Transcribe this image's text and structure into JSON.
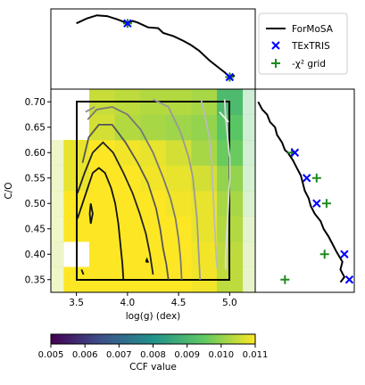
{
  "chart_data": {
    "type": "heatmap",
    "heatmap": {
      "x_centers": [
        3.25,
        3.5,
        3.75,
        4.0,
        4.25,
        4.5,
        4.75,
        5.0,
        5.25
      ],
      "y_centers": [
        0.3,
        0.35,
        0.4,
        0.45,
        0.5,
        0.55,
        0.6,
        0.65,
        0.7
      ],
      "values": [
        [
          0.011,
          0.011,
          0.011,
          0.011,
          0.011,
          0.011,
          0.0109,
          0.0104,
          0.0103
        ],
        [
          0.0105,
          0.011,
          0.011,
          0.011,
          0.011,
          0.011,
          0.0109,
          0.0104,
          0.0102
        ],
        [
          0.0104,
          null,
          0.011,
          0.011,
          0.011,
          0.011,
          0.0109,
          0.0104,
          0.0102
        ],
        [
          0.0105,
          0.011,
          0.011,
          0.011,
          0.011,
          0.011,
          0.0108,
          0.0103,
          0.0101
        ],
        [
          0.0105,
          0.011,
          0.011,
          0.011,
          0.011,
          0.0109,
          0.0108,
          0.0102,
          0.0098
        ],
        [
          0.0104,
          0.0108,
          0.011,
          0.011,
          0.0109,
          0.0108,
          0.0106,
          0.01,
          0.0096
        ],
        [
          0.0104,
          0.0108,
          0.011,
          0.0109,
          0.0108,
          0.0106,
          0.0102,
          0.0096,
          0.0094
        ],
        [
          null,
          null,
          0.0106,
          0.0103,
          0.0102,
          0.0101,
          0.01,
          0.0094,
          0.0093
        ],
        [
          null,
          null,
          0.0105,
          0.0104,
          0.0103,
          0.0103,
          0.0102,
          0.0091,
          0.0093
        ]
      ]
    },
    "xlabel": "log(g) (dex)",
    "ylabel": "C/O",
    "x_ticks": [
      "3.5",
      "4.0",
      "4.5",
      "5.0"
    ],
    "y_ticks": [
      "0.35",
      "0.40",
      "0.45",
      "0.50",
      "0.55",
      "0.60",
      "0.65",
      "0.70"
    ],
    "xlim": [
      3.25,
      5.25
    ],
    "ylim": [
      0.325,
      0.725
    ],
    "contours": [
      {
        "color": "#111111",
        "points": [
          [
            3.55,
            0.37
          ],
          [
            3.57,
            0.36
          ]
        ]
      },
      {
        "color": "#111111",
        "points": [
          [
            3.63,
            0.48
          ],
          [
            3.64,
            0.5
          ],
          [
            3.66,
            0.48
          ],
          [
            3.64,
            0.46
          ],
          [
            3.63,
            0.48
          ]
        ]
      },
      {
        "color": "#111111",
        "points": [
          [
            4.18,
            0.385
          ],
          [
            4.19,
            0.39
          ],
          [
            4.2,
            0.385
          ],
          [
            4.18,
            0.385
          ]
        ]
      },
      {
        "color": "#111111",
        "points": [
          [
            3.51,
            0.47
          ],
          [
            3.56,
            0.5
          ],
          [
            3.61,
            0.53
          ],
          [
            3.66,
            0.56
          ],
          [
            3.72,
            0.57
          ],
          [
            3.78,
            0.56
          ],
          [
            3.84,
            0.53
          ],
          [
            3.88,
            0.5
          ],
          [
            3.91,
            0.46
          ],
          [
            3.93,
            0.42
          ],
          [
            3.95,
            0.38
          ],
          [
            3.96,
            0.35
          ]
        ]
      },
      {
        "color": "#222222",
        "points": [
          [
            3.51,
            0.52
          ],
          [
            3.58,
            0.56
          ],
          [
            3.66,
            0.6
          ],
          [
            3.76,
            0.62
          ],
          [
            3.86,
            0.6
          ],
          [
            3.96,
            0.56
          ],
          [
            4.05,
            0.52
          ],
          [
            4.12,
            0.48
          ],
          [
            4.18,
            0.44
          ],
          [
            4.22,
            0.4
          ],
          [
            4.25,
            0.36
          ]
        ]
      },
      {
        "color": "#555555",
        "points": [
          [
            3.56,
            0.58
          ],
          [
            3.62,
            0.63
          ],
          [
            3.72,
            0.655
          ],
          [
            3.85,
            0.655
          ],
          [
            3.98,
            0.62
          ],
          [
            4.1,
            0.58
          ],
          [
            4.2,
            0.54
          ],
          [
            4.28,
            0.49
          ],
          [
            4.32,
            0.45
          ],
          [
            4.35,
            0.41
          ],
          [
            4.38,
            0.38
          ],
          [
            4.4,
            0.35
          ]
        ]
      },
      {
        "color": "#777777",
        "points": [
          [
            3.61,
            0.665
          ],
          [
            3.7,
            0.685
          ],
          [
            3.85,
            0.69
          ],
          [
            4.0,
            0.675
          ],
          [
            4.13,
            0.645
          ],
          [
            4.25,
            0.6
          ],
          [
            4.35,
            0.55
          ],
          [
            4.42,
            0.51
          ],
          [
            4.47,
            0.47
          ],
          [
            4.5,
            0.43
          ],
          [
            4.52,
            0.39
          ],
          [
            4.53,
            0.35
          ]
        ]
      },
      {
        "color": "#8a8a8a",
        "points": [
          [
            3.59,
            0.68
          ],
          [
            3.68,
            0.69
          ]
        ]
      },
      {
        "color": "#999999",
        "points": [
          [
            4.25,
            0.705
          ],
          [
            4.4,
            0.69
          ],
          [
            4.52,
            0.64
          ],
          [
            4.6,
            0.59
          ],
          [
            4.64,
            0.55
          ],
          [
            4.66,
            0.51
          ],
          [
            4.68,
            0.47
          ],
          [
            4.69,
            0.43
          ],
          [
            4.7,
            0.39
          ],
          [
            4.71,
            0.35
          ]
        ]
      },
      {
        "color": "#bbbbbb",
        "points": [
          [
            4.72,
            0.705
          ],
          [
            4.76,
            0.67
          ],
          [
            4.8,
            0.63
          ],
          [
            4.82,
            0.59
          ],
          [
            4.83,
            0.55
          ],
          [
            4.84,
            0.51
          ],
          [
            4.85,
            0.47
          ],
          [
            4.86,
            0.43
          ],
          [
            4.87,
            0.39
          ],
          [
            4.88,
            0.37
          ]
        ]
      },
      {
        "color": "#dddddd",
        "points": [
          [
            4.95,
            0.705
          ],
          [
            4.96,
            0.67
          ],
          [
            4.98,
            0.63
          ],
          [
            5.0,
            0.59
          ],
          [
            5.0,
            0.55
          ],
          [
            4.99,
            0.51
          ],
          [
            4.98,
            0.47
          ],
          [
            4.97,
            0.43
          ],
          [
            4.96,
            0.39
          ],
          [
            4.96,
            0.37
          ]
        ]
      },
      {
        "color": "#f2f2f2",
        "points": [
          [
            4.9,
            0.68
          ],
          [
            4.99,
            0.66
          ]
        ]
      }
    ],
    "top_marginal": {
      "line": [
        [
          3.5,
          0.82
        ],
        [
          3.6,
          0.88
        ],
        [
          3.7,
          0.92
        ],
        [
          3.8,
          0.91
        ],
        [
          3.9,
          0.87
        ],
        [
          4.0,
          0.82
        ],
        [
          4.05,
          0.85
        ],
        [
          4.1,
          0.83
        ],
        [
          4.2,
          0.77
        ],
        [
          4.3,
          0.76
        ],
        [
          4.35,
          0.7
        ],
        [
          4.45,
          0.66
        ],
        [
          4.55,
          0.6
        ],
        [
          4.62,
          0.55
        ],
        [
          4.7,
          0.48
        ],
        [
          4.8,
          0.36
        ],
        [
          4.9,
          0.26
        ],
        [
          4.95,
          0.21
        ],
        [
          5.0,
          0.15
        ],
        [
          5.05,
          0.17
        ]
      ],
      "texTRIS": [
        [
          4.0,
          0.82
        ],
        [
          5.0,
          0.15
        ]
      ],
      "grid": [
        [
          4.0,
          0.82
        ],
        [
          5.0,
          0.15
        ]
      ]
    },
    "right_marginal": {
      "line": [
        [
          0.03,
          0.7
        ],
        [
          0.07,
          0.685
        ],
        [
          0.12,
          0.675
        ],
        [
          0.15,
          0.66
        ],
        [
          0.2,
          0.65
        ],
        [
          0.22,
          0.635
        ],
        [
          0.27,
          0.62
        ],
        [
          0.3,
          0.605
        ],
        [
          0.33,
          0.6
        ],
        [
          0.38,
          0.585
        ],
        [
          0.42,
          0.57
        ],
        [
          0.46,
          0.555
        ],
        [
          0.48,
          0.54
        ],
        [
          0.5,
          0.525
        ],
        [
          0.54,
          0.51
        ],
        [
          0.56,
          0.495
        ],
        [
          0.6,
          0.48
        ],
        [
          0.66,
          0.465
        ],
        [
          0.69,
          0.45
        ],
        [
          0.74,
          0.435
        ],
        [
          0.78,
          0.42
        ],
        [
          0.82,
          0.405
        ],
        [
          0.85,
          0.395
        ],
        [
          0.88,
          0.385
        ],
        [
          0.86,
          0.37
        ],
        [
          0.9,
          0.355
        ],
        [
          0.86,
          0.345
        ]
      ],
      "texTRIS": [
        [
          0.4,
          0.6
        ],
        [
          0.52,
          0.55
        ],
        [
          0.62,
          0.5
        ],
        [
          0.9,
          0.4
        ],
        [
          0.95,
          0.35
        ]
      ],
      "grid": [
        [
          0.37,
          0.6
        ],
        [
          0.62,
          0.55
        ],
        [
          0.72,
          0.5
        ],
        [
          0.7,
          0.4
        ],
        [
          0.3,
          0.35
        ]
      ]
    },
    "colorbar": {
      "vmin": 0.005,
      "vmax": 0.011,
      "ticks": [
        "0.005",
        "0.006",
        "0.007",
        "0.008",
        "0.009",
        "0.010",
        "0.011"
      ],
      "label": "CCF value",
      "colormap": [
        "#440154",
        "#3b528b",
        "#21918c",
        "#5ec962",
        "#fde725"
      ]
    },
    "legend": {
      "placement": "top-right",
      "entries": [
        {
          "label": "ForMoSA",
          "marker": "line",
          "color": "#000000"
        },
        {
          "label": "TExTRIS",
          "marker": "x",
          "color": "#0000ff"
        },
        {
          "label": "-χ² grid",
          "marker": "plus",
          "color": "#1e8c1e"
        }
      ]
    }
  }
}
